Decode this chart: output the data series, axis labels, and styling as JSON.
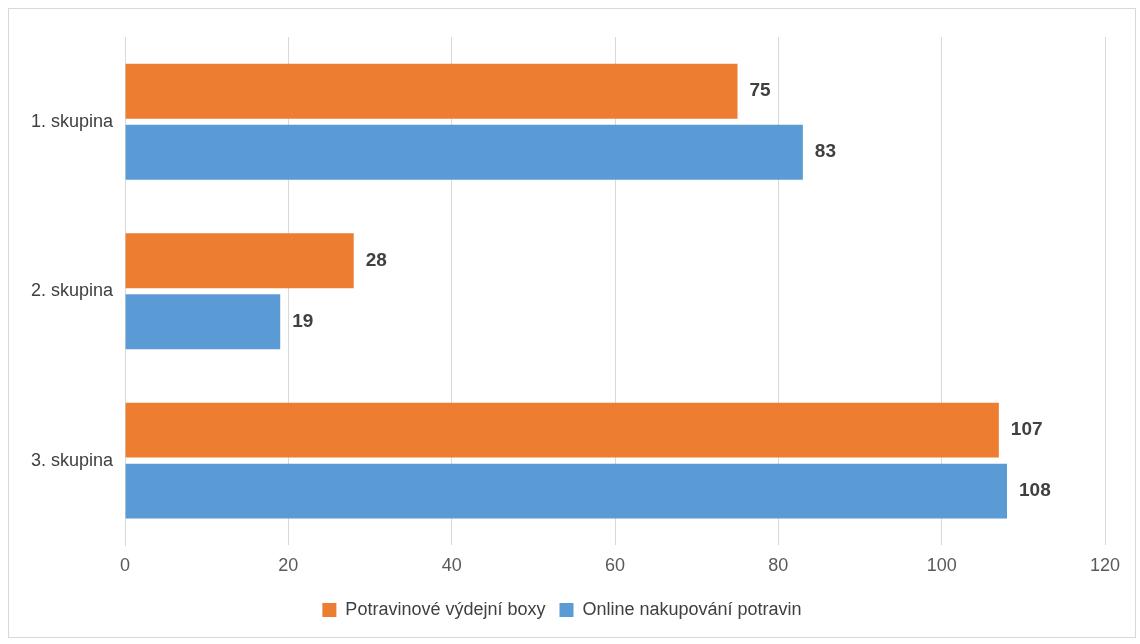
{
  "chart_data": {
    "type": "bar",
    "orientation": "horizontal",
    "categories": [
      "1. skupina",
      "2. skupina",
      "3. skupina"
    ],
    "series": [
      {
        "name": "Potravinové výdejní boxy",
        "color": "#ed7d31",
        "values": [
          75,
          28,
          107
        ]
      },
      {
        "name": "Online nakupování potravin",
        "color": "#5b9bd5",
        "values": [
          83,
          19,
          108
        ]
      }
    ],
    "xlim": [
      0,
      120
    ],
    "xticks": [
      0,
      20,
      40,
      60,
      80,
      100,
      120
    ],
    "grid": "x",
    "legend": "bottom",
    "data_labels": true
  }
}
